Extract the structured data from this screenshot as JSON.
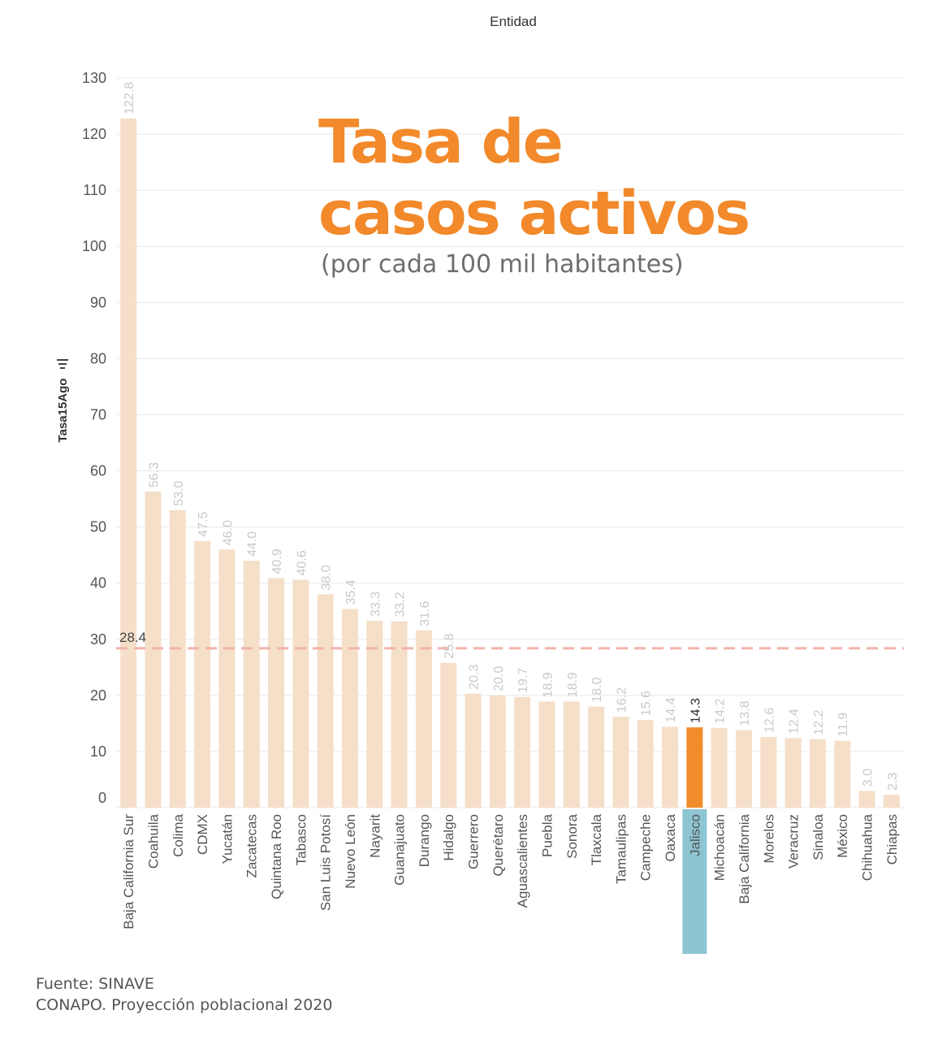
{
  "title_line1": "Tasa de",
  "title_line2": "casos activos",
  "subtitle": "(por cada 100 mil habitantes)",
  "source_line1": "Fuente: SINAVE",
  "source_line2": "CONAPO. Proyección poblacional 2020",
  "colors": {
    "bar": "#f5dfc9",
    "highlight_bar": "#f28b2c",
    "highlight_label_bg": "#8dc5d3",
    "reference_line": "#f2b3ac",
    "title": "#f2892a",
    "grid": "#e9e9e9"
  },
  "chart_data": {
    "type": "bar",
    "xlabel": "Entidad",
    "ylabel": "Tasa15Ago",
    "ylim": [
      0,
      130
    ],
    "yticks": [
      0,
      10,
      20,
      30,
      40,
      50,
      60,
      70,
      80,
      90,
      100,
      110,
      120,
      130
    ],
    "grid": true,
    "categories": [
      "Baja California Sur",
      "Coahuila",
      "Colima",
      "CDMX",
      "Yucatán",
      "Zacatecas",
      "Quintana Roo",
      "Tabasco",
      "San Luis Potosí",
      "Nuevo León",
      "Nayarit",
      "Guanajuato",
      "Durango",
      "Hidalgo",
      "Guerrero",
      "Querétaro",
      "Aguascalientes",
      "Puebla",
      "Sonora",
      "Tlaxcala",
      "Tamaulipas",
      "Campeche",
      "Oaxaca",
      "Jalisco",
      "Michoacán",
      "Baja California",
      "Morelos",
      "Veracruz",
      "Sinaloa",
      "México",
      "Chihuahua",
      "Chiapas"
    ],
    "values": [
      122.8,
      56.3,
      53.0,
      47.5,
      46.0,
      44.0,
      40.9,
      40.6,
      38.0,
      35.4,
      33.3,
      33.2,
      31.6,
      25.8,
      20.3,
      20.0,
      19.7,
      18.9,
      18.9,
      18.0,
      16.2,
      15.6,
      14.4,
      14.3,
      14.2,
      13.8,
      12.6,
      12.4,
      12.2,
      11.9,
      3.0,
      2.3
    ],
    "value_labels": [
      "122.8",
      "56.3",
      "53.0",
      "47.5",
      "46.0",
      "44.0",
      "40.9",
      "40.6",
      "38.0",
      "35.4",
      "33.3",
      "33.2",
      "31.6",
      "25.8",
      "20.3",
      "20.0",
      "19.7",
      "18.9",
      "18.9",
      "18.0",
      "16.2",
      "15.6",
      "14.4",
      "14.3",
      "14.2",
      "13.8",
      "12.6",
      "12.4",
      "12.2",
      "11.9",
      "3.0",
      "2.3"
    ],
    "highlight": "Jalisco",
    "reference_line": {
      "value": 28.4,
      "label": "28.4"
    }
  }
}
